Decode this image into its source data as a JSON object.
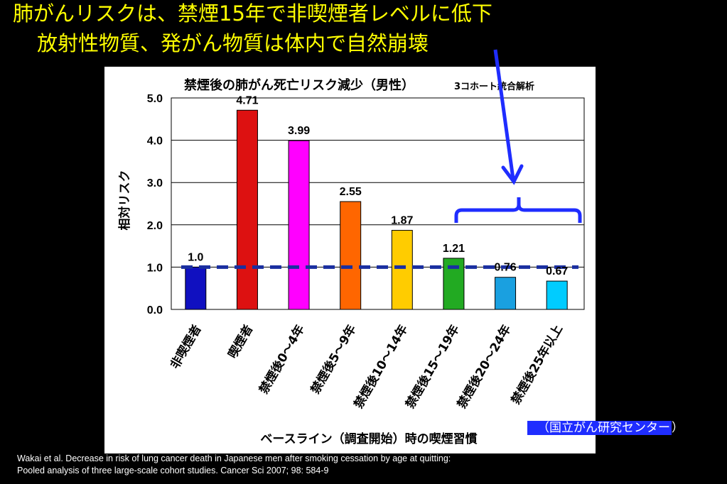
{
  "headline": {
    "line1": "肺がんリスクは、禁煙15年で非喫煙者レベルに低下",
    "line2": "放射性物質、発がん物質は体内で自然崩壊"
  },
  "source_badge": {
    "open": "（",
    "text": "国立がん研究センター",
    "close": "）"
  },
  "citation": {
    "line1": "Wakai et al. Decrease in risk of lung cancer death in Japanese men after smoking cessation by age at quitting:",
    "line2": "Pooled analysis of three large-scale cohort studies. Cancer Sci 2007; 98: 584-9"
  },
  "colors": {
    "headline": "#ffff00",
    "arrow": "#1f2dff",
    "reference_line": "#1a2fa0",
    "bars": [
      "#1010c0",
      "#dd1111",
      "#ff00ff",
      "#ff6600",
      "#ffcc00",
      "#22aa22",
      "#1aa0e0",
      "#00ccff"
    ]
  },
  "chart_data": {
    "type": "bar",
    "title": "禁煙後の肺がん死亡リスク減少（男性）",
    "subtitle": "3コホート統合解析",
    "ylabel": "相対リスク",
    "xlabel": "ベースライン（調査開始）時の喫煙習慣",
    "ylim": [
      0,
      5
    ],
    "yticks": [
      "0.0",
      "1.0",
      "2.0",
      "3.0",
      "4.0",
      "5.0"
    ],
    "grid": true,
    "categories": [
      "非喫煙者",
      "喫煙者",
      "禁煙後0〜4年",
      "禁煙後5〜9年",
      "禁煙後10〜14年",
      "禁煙後15〜19年",
      "禁煙後20〜24年",
      "禁煙後25年以上"
    ],
    "values": [
      1.0,
      4.71,
      3.99,
      2.55,
      1.87,
      1.21,
      0.76,
      0.67
    ],
    "value_labels": [
      "1.0",
      "4.71",
      "3.99",
      "2.55",
      "1.87",
      "1.21",
      "0.76",
      "0.67"
    ],
    "reference_line": 1.0
  }
}
